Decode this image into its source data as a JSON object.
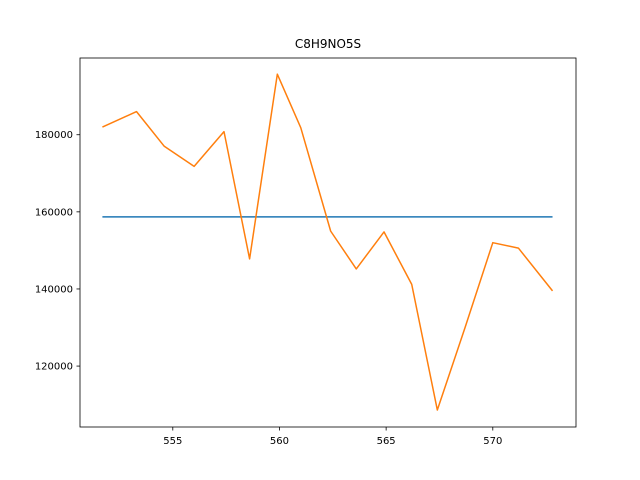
{
  "chart_data": {
    "type": "line",
    "title": "C8H9NO5S",
    "xlabel": "",
    "ylabel": "",
    "xlim": [
      550.65,
      573.9
    ],
    "ylim": [
      104200,
      199900
    ],
    "xticks": [
      555,
      560,
      565,
      570
    ],
    "yticks": [
      120000,
      140000,
      160000,
      180000
    ],
    "grid": false,
    "series": [
      {
        "color": "#1f77b4",
        "x": [
          551.7,
          572.8
        ],
        "y": [
          158700,
          158700
        ]
      },
      {
        "color": "#ff7f0e",
        "x": [
          551.7,
          553.3,
          554.6,
          556.0,
          557.4,
          558.6,
          559.9,
          561.0,
          562.4,
          563.6,
          564.9,
          566.2,
          567.4,
          568.7,
          570.0,
          571.2,
          572.8
        ],
        "y": [
          182000,
          186000,
          177000,
          171800,
          180800,
          147800,
          195700,
          181800,
          155000,
          145200,
          154800,
          141200,
          108600,
          130000,
          152000,
          150600,
          139500
        ]
      }
    ]
  }
}
